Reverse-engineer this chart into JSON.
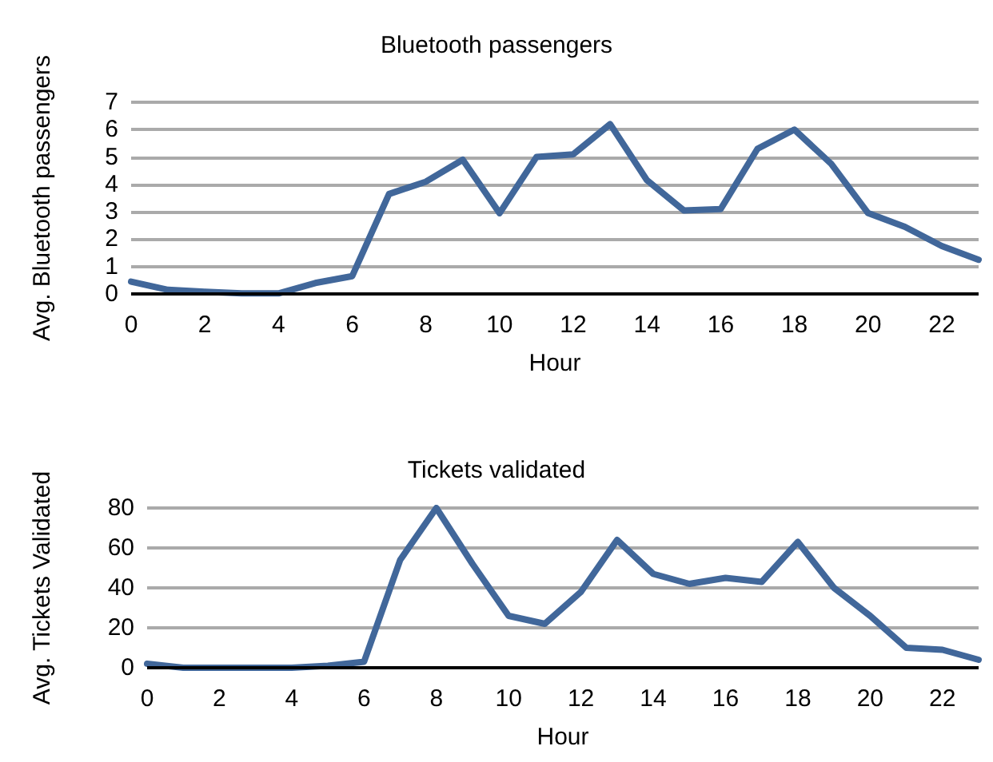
{
  "chart_data": [
    {
      "type": "line",
      "title": "Bluetooth passengers",
      "xlabel": "Hour",
      "ylabel": "Avg. Bluetooth passengers",
      "x": [
        0,
        1,
        2,
        3,
        4,
        5,
        6,
        7,
        8,
        9,
        10,
        11,
        12,
        13,
        14,
        15,
        16,
        17,
        18,
        19,
        20,
        21,
        22,
        23
      ],
      "series": [
        {
          "color": "#41679a",
          "values": [
            0.45,
            0.15,
            0.08,
            0.02,
            0.02,
            0.4,
            0.65,
            3.65,
            4.1,
            4.9,
            2.95,
            5.0,
            5.1,
            6.2,
            4.15,
            3.05,
            3.1,
            5.3,
            6.0,
            4.75,
            2.95,
            2.45,
            1.75,
            1.25
          ]
        }
      ],
      "xlim": [
        0,
        23
      ],
      "xticks": [
        0,
        2,
        4,
        6,
        8,
        10,
        12,
        14,
        16,
        18,
        20,
        22
      ],
      "ylim": [
        0,
        7
      ],
      "yticks": [
        0,
        1,
        2,
        3,
        4,
        5,
        6,
        7
      ],
      "grid": "y",
      "marker": "none",
      "line_style": "solid"
    },
    {
      "type": "line",
      "title": "Tickets validated",
      "xlabel": "Hour",
      "ylabel": "Avg. Tickets Validated",
      "x": [
        0,
        1,
        2,
        3,
        4,
        5,
        6,
        7,
        8,
        9,
        10,
        11,
        12,
        13,
        14,
        15,
        16,
        17,
        18,
        19,
        20,
        21,
        22,
        23
      ],
      "series": [
        {
          "color": "#41679a",
          "values": [
            2,
            0,
            0,
            0,
            0,
            1,
            3,
            54,
            80,
            52,
            26,
            22,
            38,
            64,
            47,
            42,
            45,
            43,
            63,
            40,
            26,
            10,
            9,
            4
          ]
        }
      ],
      "xlim": [
        0,
        23
      ],
      "xticks": [
        0,
        2,
        4,
        6,
        8,
        10,
        12,
        14,
        16,
        18,
        20,
        22
      ],
      "ylim": [
        0,
        80
      ],
      "yticks": [
        0,
        20,
        40,
        60,
        80
      ],
      "grid": "y",
      "marker": "none",
      "line_style": "solid"
    }
  ]
}
